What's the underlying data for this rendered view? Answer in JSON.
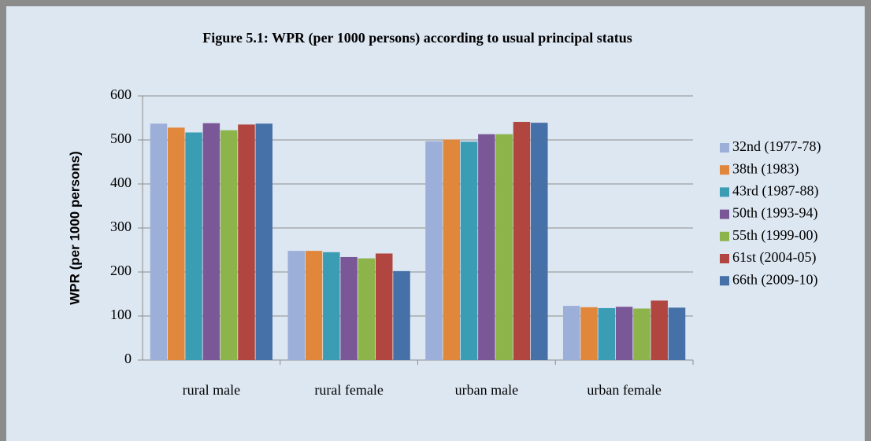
{
  "chart_data": {
    "type": "bar",
    "title": "Figure 5.1: WPR (per 1000 persons) according to usual principal status",
    "y_label": "WPR (per 1000 persons)",
    "categories": [
      "rural male",
      "rural female",
      "urban male",
      "urban female"
    ],
    "series": [
      {
        "name": "32nd (1977-78)",
        "color": "#9bafd8",
        "values": [
          537,
          248,
          497,
          123
        ]
      },
      {
        "name": "38th (1983)",
        "color": "#e0873c",
        "values": [
          528,
          248,
          501,
          120
        ]
      },
      {
        "name": "43rd  (1987-88)",
        "color": "#3b9db4",
        "values": [
          517,
          245,
          496,
          118
        ]
      },
      {
        "name": "50th (1993-94)",
        "color": "#7a5898",
        "values": [
          538,
          234,
          513,
          121
        ]
      },
      {
        "name": "55th (1999-00)",
        "color": "#8db34b",
        "values": [
          522,
          231,
          513,
          117
        ]
      },
      {
        "name": "61st (2004-05)",
        "color": "#b0463f",
        "values": [
          535,
          242,
          541,
          135
        ]
      },
      {
        "name": "66th  (2009-10)",
        "color": "#4670a8",
        "values": [
          537,
          202,
          539,
          119
        ]
      }
    ],
    "ylim": [
      0,
      600
    ],
    "yticks": [
      0,
      100,
      200,
      300,
      400,
      500,
      600
    ],
    "grid": true,
    "legend": "right"
  }
}
